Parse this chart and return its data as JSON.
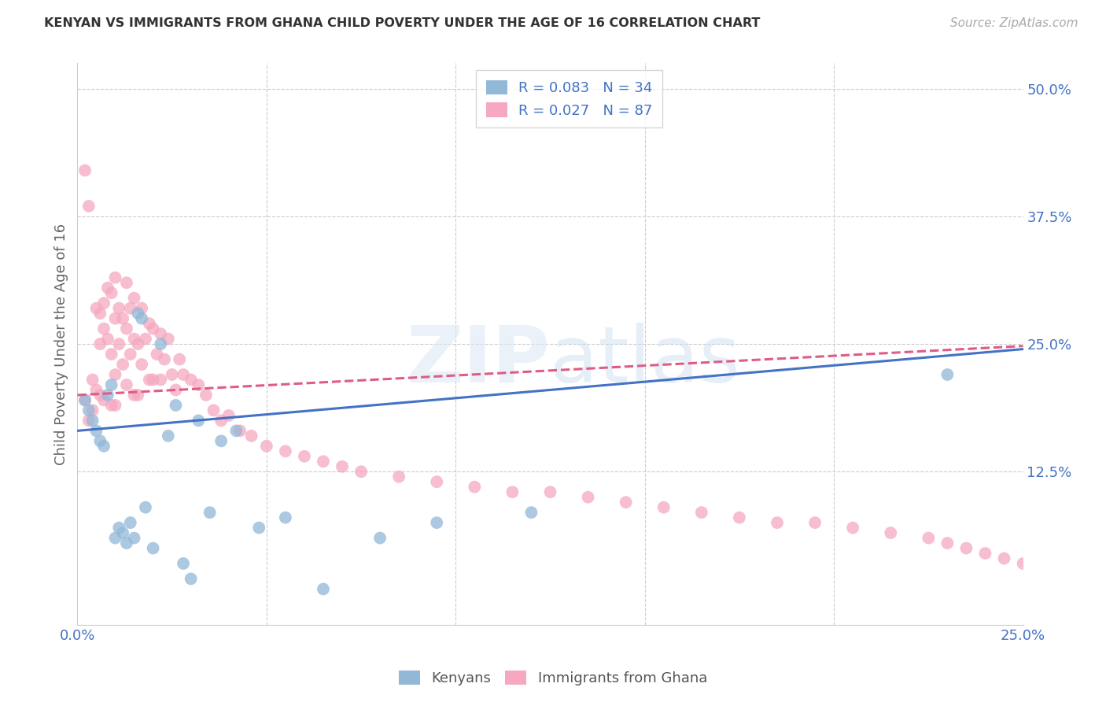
{
  "title": "KENYAN VS IMMIGRANTS FROM GHANA CHILD POVERTY UNDER THE AGE OF 16 CORRELATION CHART",
  "source": "Source: ZipAtlas.com",
  "ylabel": "Child Poverty Under the Age of 16",
  "xlim": [
    0.0,
    0.25
  ],
  "ylim": [
    -0.025,
    0.525
  ],
  "background_color": "#ffffff",
  "grid_color": "#cccccc",
  "title_color": "#333333",
  "kenyan_color": "#92b8d8",
  "ghana_color": "#f5a8bf",
  "kenyan_line_color": "#4472c4",
  "ghana_line_color": "#e05c85",
  "legend_line1": "R = 0.083   N = 34",
  "legend_line2": "R = 0.027   N = 87",
  "ytick_vals": [
    0.125,
    0.25,
    0.375,
    0.5
  ],
  "ytick_labels": [
    "12.5%",
    "25.0%",
    "37.5%",
    "50.0%"
  ],
  "kenyan_x": [
    0.002,
    0.003,
    0.004,
    0.005,
    0.006,
    0.007,
    0.008,
    0.009,
    0.01,
    0.011,
    0.012,
    0.013,
    0.014,
    0.015,
    0.016,
    0.017,
    0.018,
    0.02,
    0.022,
    0.024,
    0.026,
    0.028,
    0.03,
    0.032,
    0.035,
    0.038,
    0.042,
    0.048,
    0.055,
    0.065,
    0.08,
    0.095,
    0.12,
    0.23
  ],
  "kenyan_y": [
    0.195,
    0.185,
    0.175,
    0.165,
    0.155,
    0.15,
    0.2,
    0.21,
    0.06,
    0.07,
    0.065,
    0.055,
    0.075,
    0.06,
    0.28,
    0.275,
    0.09,
    0.05,
    0.25,
    0.16,
    0.19,
    0.035,
    0.02,
    0.175,
    0.085,
    0.155,
    0.165,
    0.07,
    0.08,
    0.01,
    0.06,
    0.075,
    0.085,
    0.22
  ],
  "ghana_x": [
    0.002,
    0.002,
    0.003,
    0.003,
    0.004,
    0.004,
    0.005,
    0.005,
    0.006,
    0.006,
    0.006,
    0.007,
    0.007,
    0.007,
    0.008,
    0.008,
    0.009,
    0.009,
    0.009,
    0.01,
    0.01,
    0.01,
    0.01,
    0.011,
    0.011,
    0.012,
    0.012,
    0.013,
    0.013,
    0.013,
    0.014,
    0.014,
    0.015,
    0.015,
    0.015,
    0.016,
    0.016,
    0.017,
    0.017,
    0.018,
    0.019,
    0.019,
    0.02,
    0.02,
    0.021,
    0.022,
    0.022,
    0.023,
    0.024,
    0.025,
    0.026,
    0.027,
    0.028,
    0.03,
    0.032,
    0.034,
    0.036,
    0.038,
    0.04,
    0.043,
    0.046,
    0.05,
    0.055,
    0.06,
    0.065,
    0.07,
    0.075,
    0.085,
    0.095,
    0.105,
    0.115,
    0.125,
    0.135,
    0.145,
    0.155,
    0.165,
    0.175,
    0.185,
    0.195,
    0.205,
    0.215,
    0.225,
    0.23,
    0.235,
    0.24,
    0.245,
    0.25
  ],
  "ghana_y": [
    0.42,
    0.195,
    0.385,
    0.175,
    0.215,
    0.185,
    0.285,
    0.205,
    0.28,
    0.25,
    0.2,
    0.29,
    0.265,
    0.195,
    0.305,
    0.255,
    0.3,
    0.24,
    0.19,
    0.315,
    0.275,
    0.22,
    0.19,
    0.285,
    0.25,
    0.275,
    0.23,
    0.31,
    0.265,
    0.21,
    0.285,
    0.24,
    0.295,
    0.255,
    0.2,
    0.25,
    0.2,
    0.285,
    0.23,
    0.255,
    0.27,
    0.215,
    0.265,
    0.215,
    0.24,
    0.26,
    0.215,
    0.235,
    0.255,
    0.22,
    0.205,
    0.235,
    0.22,
    0.215,
    0.21,
    0.2,
    0.185,
    0.175,
    0.18,
    0.165,
    0.16,
    0.15,
    0.145,
    0.14,
    0.135,
    0.13,
    0.125,
    0.12,
    0.115,
    0.11,
    0.105,
    0.105,
    0.1,
    0.095,
    0.09,
    0.085,
    0.08,
    0.075,
    0.075,
    0.07,
    0.065,
    0.06,
    0.055,
    0.05,
    0.045,
    0.04,
    0.035
  ]
}
